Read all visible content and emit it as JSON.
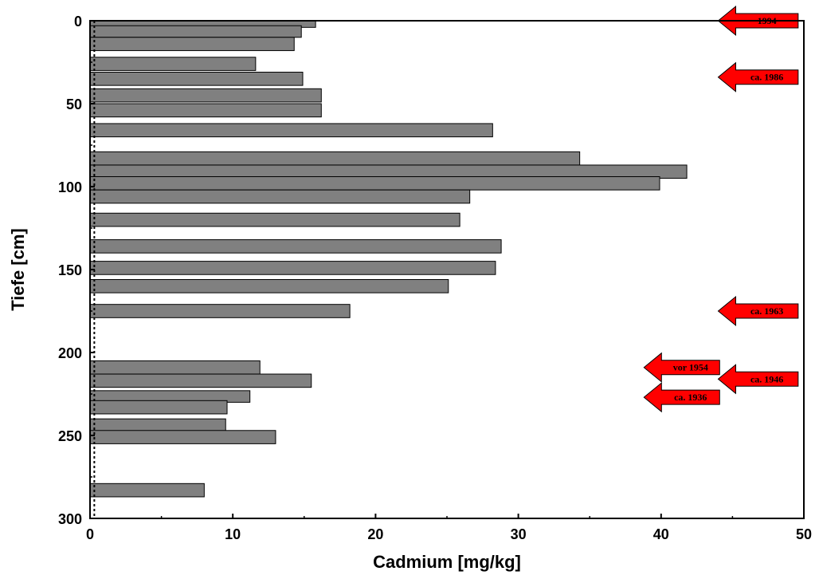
{
  "chart_data": {
    "type": "bar",
    "orientation": "horizontal",
    "xlabel": "Cadmium [mg/kg]",
    "ylabel": "Tiefe [cm]",
    "xlim": [
      0,
      50
    ],
    "ylim": [
      0,
      300
    ],
    "y_inverted": true,
    "xticks": [
      0,
      10,
      20,
      30,
      40,
      50
    ],
    "yticks": [
      0,
      50,
      100,
      150,
      200,
      250,
      300
    ],
    "grid": false,
    "bar_color": "#808080",
    "bar_edge_color": "#000000",
    "reference_line": {
      "x": 0.3,
      "style": "dotted"
    },
    "bars": [
      {
        "depth_top": 0,
        "depth_bottom": 4,
        "value": 15.8
      },
      {
        "depth_top": 3,
        "depth_bottom": 10,
        "value": 14.8
      },
      {
        "depth_top": 10,
        "depth_bottom": 18,
        "value": 14.3
      },
      {
        "depth_top": 22,
        "depth_bottom": 30,
        "value": 11.6
      },
      {
        "depth_top": 31,
        "depth_bottom": 39,
        "value": 14.9
      },
      {
        "depth_top": 41,
        "depth_bottom": 49,
        "value": 16.2
      },
      {
        "depth_top": 50,
        "depth_bottom": 58,
        "value": 16.2
      },
      {
        "depth_top": 62,
        "depth_bottom": 70,
        "value": 28.2
      },
      {
        "depth_top": 79,
        "depth_bottom": 87,
        "value": 34.3
      },
      {
        "depth_top": 87,
        "depth_bottom": 95,
        "value": 41.8
      },
      {
        "depth_top": 94,
        "depth_bottom": 102,
        "value": 39.9
      },
      {
        "depth_top": 102,
        "depth_bottom": 110,
        "value": 26.6
      },
      {
        "depth_top": 116,
        "depth_bottom": 124,
        "value": 25.9
      },
      {
        "depth_top": 132,
        "depth_bottom": 140,
        "value": 28.8
      },
      {
        "depth_top": 145,
        "depth_bottom": 153,
        "value": 28.4
      },
      {
        "depth_top": 156,
        "depth_bottom": 164,
        "value": 25.1
      },
      {
        "depth_top": 171,
        "depth_bottom": 179,
        "value": 18.2
      },
      {
        "depth_top": 205,
        "depth_bottom": 213,
        "value": 11.9
      },
      {
        "depth_top": 213,
        "depth_bottom": 221,
        "value": 15.5
      },
      {
        "depth_top": 223,
        "depth_bottom": 230,
        "value": 11.2
      },
      {
        "depth_top": 229,
        "depth_bottom": 237,
        "value": 9.6
      },
      {
        "depth_top": 240,
        "depth_bottom": 248,
        "value": 9.5
      },
      {
        "depth_top": 247,
        "depth_bottom": 255,
        "value": 13.0
      },
      {
        "depth_top": 279,
        "depth_bottom": 287,
        "value": 8.0
      }
    ],
    "annotations": [
      {
        "label": "1994",
        "depth": 0,
        "x_tip": 44,
        "x_end": 49.6
      },
      {
        "label": "ca. 1986",
        "depth": 34,
        "x_tip": 44,
        "x_end": 49.6
      },
      {
        "label": "ca. 1963",
        "depth": 175,
        "x_tip": 44,
        "x_end": 49.6
      },
      {
        "label": "ca. 1946",
        "depth": 216,
        "x_tip": 44,
        "x_end": 49.6
      },
      {
        "label": "vor 1954",
        "depth": 209,
        "x_tip": 38.8,
        "x_end": 44.1
      },
      {
        "label": "ca. 1936",
        "depth": 227,
        "x_tip": 38.8,
        "x_end": 44.1
      }
    ],
    "annotation_color": "#ff0000"
  }
}
